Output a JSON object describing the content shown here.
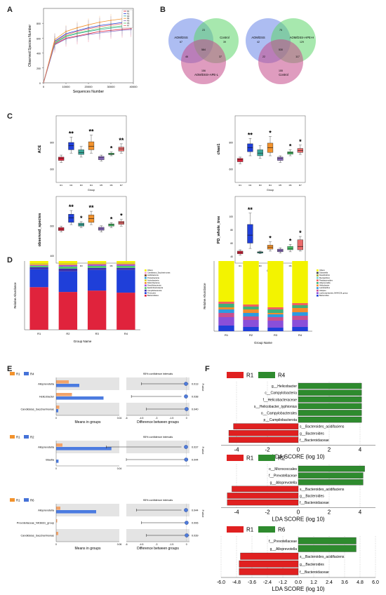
{
  "panels": {
    "A": "A",
    "B": "B",
    "C": "C",
    "D": "D",
    "E": "E",
    "F": "F"
  },
  "colors": {
    "R1": "#e0233c",
    "R2": "#1f3fd9",
    "R3": "#3aa89a",
    "R4": "#f2922c",
    "R5": "#8c6bc4",
    "R6": "#4cc96b",
    "R7": "#ea6b6b",
    "green": "#2e8b2e",
    "red": "#e02020"
  },
  "chart_data": [
    {
      "id": "A",
      "type": "line",
      "xlabel": "Sequences Number",
      "ylabel": "Observed Species Number",
      "xlim": [
        0,
        40000
      ],
      "ylim": [
        0,
        1000
      ],
      "x": [
        0,
        5000,
        10000,
        15000,
        20000,
        25000,
        30000,
        35000,
        39000
      ],
      "xticks": [
        "0",
        "10000",
        "20000",
        "30000",
        "40000"
      ],
      "yticks": [
        "0",
        "200",
        "400",
        "600",
        "800"
      ],
      "legend": [
        "R1",
        "R2",
        "R3",
        "R4",
        "R5",
        "R6",
        "R7"
      ],
      "series": [
        {
          "name": "R1",
          "values": [
            0,
            520,
            600,
            630,
            660,
            690,
            705,
            720,
            730
          ]
        },
        {
          "name": "R2",
          "values": [
            0,
            560,
            660,
            700,
            740,
            770,
            790,
            810,
            820
          ]
        },
        {
          "name": "R3",
          "values": [
            0,
            530,
            620,
            660,
            690,
            715,
            735,
            750,
            760
          ]
        },
        {
          "name": "R4",
          "values": [
            0,
            580,
            690,
            740,
            780,
            815,
            840,
            860,
            875
          ]
        },
        {
          "name": "R5",
          "values": [
            0,
            510,
            590,
            620,
            650,
            670,
            690,
            705,
            715
          ]
        },
        {
          "name": "R6",
          "values": [
            0,
            540,
            630,
            670,
            700,
            730,
            750,
            765,
            775
          ]
        },
        {
          "name": "R7",
          "values": [
            0,
            550,
            645,
            690,
            725,
            755,
            775,
            795,
            805
          ]
        }
      ]
    },
    {
      "id": "B",
      "type": "venn",
      "venns": [
        {
          "sets": [
            "AOM/DSS",
            "Control",
            "AOM/DSS+APE-L"
          ],
          "regions": {
            "a": "67",
            "b": "39",
            "c": "156",
            "ab": "23",
            "ac": "46",
            "bc": "37",
            "abc": "584"
          }
        },
        {
          "sets": [
            "AOM/DSS",
            "AOM/DSS+APE-H",
            "Control"
          ],
          "regions": {
            "a": "42",
            "b": "129",
            "c": "155",
            "ab": "75",
            "ac": "22",
            "bc": "117",
            "abc": "530"
          }
        }
      ]
    },
    {
      "id": "C",
      "type": "box",
      "xlabel": "Group",
      "groups": [
        "R1",
        "R2",
        "R3",
        "R4",
        "R5",
        "R6",
        "R7"
      ],
      "plots": [
        {
          "ylabel": "ACE",
          "ylim": [
            500,
            1000
          ],
          "yticks": [
            "600",
            "800"
          ],
          "stars": [
            "",
            "**",
            "",
            "**",
            "",
            "*",
            "**"
          ],
          "boxes": [
            [
              650,
              665,
              680,
              690,
              705
            ],
            [
              720,
              745,
              775,
              800,
              840
            ],
            [
              690,
              710,
              725,
              745,
              770
            ],
            [
              720,
              745,
              770,
              805,
              855
            ],
            [
              660,
              670,
              685,
              695,
              705
            ],
            [
              700,
              708,
              714,
              720,
              728
            ],
            [
              720,
              735,
              752,
              765,
              790
            ]
          ]
        },
        {
          "ylabel": "chao1",
          "ylim": [
            500,
            1000
          ],
          "yticks": [
            "600",
            "800"
          ],
          "stars": [
            "",
            "**",
            "",
            "*",
            "",
            "*",
            "*"
          ],
          "boxes": [
            [
              640,
              655,
              670,
              680,
              690
            ],
            [
              700,
              730,
              760,
              790,
              830
            ],
            [
              680,
              700,
              720,
              745,
              775
            ],
            [
              700,
              725,
              760,
              795,
              845
            ],
            [
              650,
              665,
              680,
              690,
              700
            ],
            [
              700,
              712,
              722,
              730,
              745
            ],
            [
              710,
              725,
              740,
              755,
              780
            ]
          ]
        },
        {
          "ylabel": "observed_species",
          "ylim": [
            350,
            800
          ],
          "yticks": [
            "400",
            "600"
          ],
          "stars": [
            "",
            "**",
            "*",
            "**",
            "",
            "*",
            "*"
          ],
          "boxes": [
            [
              560,
              570,
              580,
              590,
              600
            ],
            [
              610,
              625,
              655,
              680,
              705
            ],
            [
              590,
              600,
              610,
              620,
              630
            ],
            [
              610,
              625,
              650,
              675,
              700
            ],
            [
              560,
              572,
              582,
              592,
              602
            ],
            [
              590,
              600,
              608,
              615,
              622
            ],
            [
              600,
              612,
              622,
              632,
              645
            ]
          ]
        },
        {
          "ylabel": "PD_whole_tree",
          "ylim": [
            30,
            130
          ],
          "yticks": [
            "40",
            "60",
            "80",
            "100"
          ],
          "stars": [
            "",
            "**",
            "",
            "*",
            "",
            "*",
            "*"
          ],
          "boxes": [
            [
              42,
              44,
              46,
              48,
              50
            ],
            [
              52,
              60,
              72,
              88,
              105
            ],
            [
              44,
              45,
              46,
              47,
              48
            ],
            [
              48,
              51,
              54,
              57,
              62
            ],
            [
              45,
              47,
              49,
              51,
              53
            ],
            [
              47,
              50,
              52,
              55,
              58
            ],
            [
              48,
              50,
              55,
              65,
              70
            ]
          ]
        }
      ]
    },
    {
      "id": "D",
      "type": "bar",
      "stacked": true,
      "xlabel": "Group Name",
      "ylabel": "Relative Abundance",
      "categories": [
        "R1",
        "R2",
        "R3",
        "R4"
      ],
      "plots": [
        {
          "ylabel": "Relative Abundance",
          "ylim": [
            0,
            1
          ],
          "legend": [
            "Others",
            "Candidatus_Saccharimonas",
            "Acidobacteria",
            "Proteobacteria",
            "Actinobacteria",
            "Deferribacteres",
            "Desulfobacterota",
            "Epsilonbacteraeota",
            "Campilobacterota",
            "Firmicutes",
            "Bacteroidetes"
          ],
          "series": [
            {
              "name": "Bacteroidetes",
              "values": [
                0.62,
                0.55,
                0.57,
                0.54
              ]
            },
            {
              "name": "Firmicutes",
              "values": [
                0.26,
                0.3,
                0.3,
                0.33
              ]
            },
            {
              "name": "Campilobacterota",
              "values": [
                0.03,
                0.04,
                0.03,
                0.03
              ]
            },
            {
              "name": "Desulfobacterota",
              "values": [
                0.02,
                0.03,
                0.03,
                0.03
              ]
            },
            {
              "name": "Deferribacteres",
              "values": [
                0.01,
                0.02,
                0.02,
                0.02
              ]
            },
            {
              "name": "Actinobacteria",
              "values": [
                0.01,
                0.01,
                0.01,
                0.01
              ]
            },
            {
              "name": "Proteobacteria",
              "values": [
                0.02,
                0.02,
                0.02,
                0.02
              ]
            },
            {
              "name": "Others",
              "values": [
                0.03,
                0.03,
                0.02,
                0.02
              ]
            }
          ]
        },
        {
          "ylabel": "Relative Abundance",
          "ylim": [
            0,
            1
          ],
          "legend": [
            "Others",
            "Dubosiella",
            "Desulfovibrio",
            "Mucispirillum",
            "Parabacteroides",
            "Alloprevotella",
            "Helicobacter",
            "Lactobacillus",
            "Alistipes",
            "Lachnospiraceae_NK4A136_group",
            "Bacteroides"
          ],
          "series": [
            {
              "name": "Bacteroides",
              "values": [
                0.08,
                0.06,
                0.05,
                0.06
              ]
            },
            {
              "name": "Lachnospiraceae_NK4A136_group",
              "values": [
                0.12,
                0.1,
                0.1,
                0.1
              ]
            },
            {
              "name": "Alistipes",
              "values": [
                0.06,
                0.05,
                0.05,
                0.06
              ]
            },
            {
              "name": "Lactobacillus",
              "values": [
                0.05,
                0.05,
                0.04,
                0.05
              ]
            },
            {
              "name": "Helicobacter",
              "values": [
                0.03,
                0.05,
                0.02,
                0.06
              ]
            },
            {
              "name": "Alloprevotella",
              "values": [
                0.05,
                0.04,
                0.05,
                0.04
              ]
            },
            {
              "name": "Parabacteroides",
              "values": [
                0.03,
                0.03,
                0.03,
                0.03
              ]
            },
            {
              "name": "Others",
              "values": [
                0.58,
                0.62,
                0.66,
                0.6
              ]
            }
          ]
        }
      ]
    },
    {
      "id": "E",
      "type": "bar",
      "orientation": "horizontal",
      "plots": [
        {
          "legend": [
            "R1",
            "R4"
          ],
          "ci_title": "95% confidence intervals",
          "xlabel_left": "Means in groups",
          "xlabel_right": "Difference between groups",
          "ptitle": "P-value",
          "taxa": [
            "Alloprevotella",
            "Helicobacter",
            "Candidatus_Saccharimonas"
          ],
          "means_a": [
            0.012,
            0.015,
            0.003
          ],
          "means_b": [
            0.022,
            0.045,
            0.002
          ],
          "xlim_left": [
            0,
            0.06
          ],
          "left_ticks": [
            "0",
            "0.04"
          ],
          "diff": [
            -0.01,
            -0.03,
            0.001
          ],
          "ci": [
            [
              -0.045,
              0.002
            ],
            [
              -0.055,
              -0.005
            ],
            [
              -0.04,
              0.002
            ]
          ],
          "pvalues": [
            "0.013",
            "0.038",
            "0.040"
          ],
          "right_ticks": [
            "-6",
            "-4.5",
            "-3",
            "-1.5",
            "0"
          ]
        },
        {
          "legend": [
            "R1",
            "R2"
          ],
          "ci_title": "95% confidence intervals",
          "xlabel_left": "",
          "xlabel_right": "",
          "ptitle": "P-value",
          "taxa": [
            "Alloprevotella",
            "Blautia"
          ],
          "means_a": [
            0.008,
            0.0
          ],
          "means_b": [
            0.07,
            0.003
          ],
          "xlim_left": [
            0,
            0.08
          ],
          "left_ticks": [
            "0",
            "0.04"
          ],
          "diff": [
            -0.06,
            -0.003
          ],
          "ci": [
            [
              -0.08,
              -0.005
            ],
            [
              -0.06,
              0.001
            ]
          ],
          "pvalues": [
            "0.037",
            "0.044"
          ],
          "right_ticks": []
        },
        {
          "legend": [
            "R1",
            "R6"
          ],
          "ci_title": "95% confidence intervals",
          "xlabel_left": "Means in groups",
          "xlabel_right": "Difference between groups",
          "ptitle": "P-value",
          "taxa": [
            "Alloprevotella",
            "Prevotellaceae_NK3B31_group",
            "Candidatus_Saccharimonas"
          ],
          "means_a": [
            0.004,
            0.001,
            0.002
          ],
          "means_b": [
            0.038,
            0.0,
            0.0
          ],
          "xlim_left": [
            0,
            0.06
          ],
          "left_ticks": [
            "0",
            "0.06"
          ],
          "diff": [
            -0.03,
            0.001,
            0.002
          ],
          "ci": [
            [
              -0.05,
              -0.005
            ],
            [
              -0.045,
              0.002
            ],
            [
              -0.04,
              0.003
            ]
          ],
          "pvalues": [
            "0.044",
            "0.006",
            "0.039"
          ],
          "right_ticks": [
            "-6",
            "-4.5",
            "-3",
            "-1.5",
            "0"
          ]
        }
      ]
    },
    {
      "id": "F",
      "type": "bar",
      "orientation": "horizontal",
      "xlabel": "LDA SCORE (log 10)",
      "plots": [
        {
          "legend": [
            "R1",
            "R4"
          ],
          "xlim": [
            -5,
            5
          ],
          "xticks": [
            "-4",
            "-2",
            "0",
            "2",
            "4"
          ],
          "taxa": [
            "g__Helicobacter",
            "c__Campylobacteria",
            "f__Helicobacteraceae",
            "s__Helicobacter_typhionius",
            "o__Campylobacterales",
            "p__Campilobacterota",
            "s__Bacteroides_acidifaciens",
            "g__Bacteroides",
            "f__Bacteroidaceae"
          ],
          "values": [
            4.1,
            4.1,
            4.1,
            4.1,
            4.1,
            4.1,
            -4.2,
            -4.5,
            -4.5
          ]
        },
        {
          "legend": [
            "R1",
            "R2"
          ],
          "xlim": [
            -5,
            5
          ],
          "xticks": [
            "-4",
            "-2",
            "0",
            "2",
            "4"
          ],
          "taxa": [
            "o__Micrococcales",
            "f__Prevotellaceae",
            "g__Alloprevotella",
            "s__Bacteroides_acidifaciens",
            "g__Bacteroides",
            "f__Bacteroidaceae"
          ],
          "values": [
            4.3,
            4.2,
            4.2,
            -4.3,
            -4.6,
            -4.6
          ]
        },
        {
          "legend": [
            "R1",
            "R6"
          ],
          "xlim": [
            -6,
            6
          ],
          "xticks": [
            "-6.0",
            "-4.8",
            "-3.6",
            "-2.4",
            "-1.2",
            "0.0",
            "1.2",
            "2.4",
            "3.6",
            "4.8",
            "6.0"
          ],
          "taxa": [
            "f__Prevotellaceae",
            "g__Alloprevotella",
            "s__Bacteroides_acidifaciens",
            "g__Bacteroides",
            "f__Bacteroidaceae"
          ],
          "values": [
            4.5,
            4.5,
            -4.5,
            -4.6,
            -4.6
          ]
        }
      ]
    }
  ]
}
